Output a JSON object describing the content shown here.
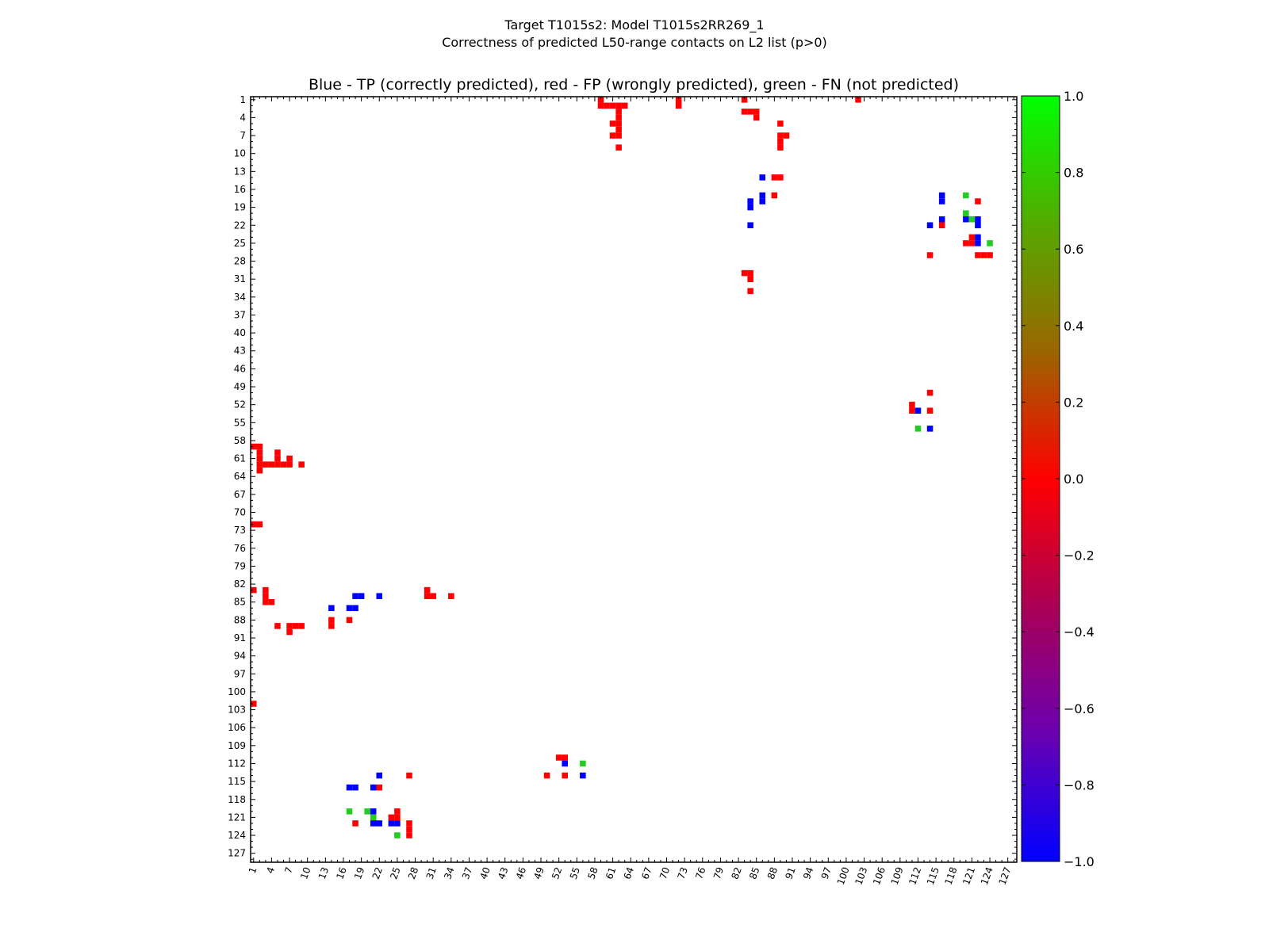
{
  "colors": {
    "tp": "#0000ff",
    "fp": "#ff0000",
    "fn": "#22cc22",
    "background": "#ffffff"
  },
  "chart_data": {
    "type": "heatmap",
    "title": [
      "Target T1015s2: Model T1015s2RR269_1",
      "Correctness of predicted L50-range contacts on L2 list (p>0)"
    ],
    "subtitle": "Blue - TP (correctly predicted), red - FP (wrongly predicted), green - FN (not predicted)",
    "xlabel": "",
    "ylabel": "",
    "axis_range": [
      1,
      129
    ],
    "ticks": [
      1,
      4,
      7,
      10,
      13,
      16,
      19,
      22,
      25,
      28,
      31,
      34,
      37,
      40,
      43,
      46,
      49,
      52,
      55,
      58,
      61,
      64,
      67,
      70,
      73,
      76,
      79,
      82,
      85,
      88,
      91,
      94,
      97,
      100,
      103,
      106,
      109,
      112,
      115,
      118,
      121,
      124,
      127
    ],
    "colorbar": {
      "range": [
        -1.0,
        1.0
      ],
      "ticks": [
        "1.0",
        "0.8",
        "0.6",
        "0.4",
        "0.2",
        "0.0",
        "−0.2",
        "−0.4",
        "−0.6",
        "−0.8",
        "−1.0"
      ],
      "stops": [
        "#0000ff",
        "#6a00b0",
        "#aa0055",
        "#ff0000",
        "#9a6600",
        "#55aa00",
        "#00ff00"
      ]
    },
    "cells": [
      {
        "x": 59,
        "y": 1,
        "v": 0
      },
      {
        "x": 59,
        "y": 2,
        "v": 0
      },
      {
        "x": 60,
        "y": 2,
        "v": 0
      },
      {
        "x": 61,
        "y": 2,
        "v": 0
      },
      {
        "x": 62,
        "y": 2,
        "v": 0
      },
      {
        "x": 63,
        "y": 2,
        "v": 0
      },
      {
        "x": 62,
        "y": 3,
        "v": 0
      },
      {
        "x": 62,
        "y": 4,
        "v": 0
      },
      {
        "x": 61,
        "y": 5,
        "v": 0
      },
      {
        "x": 62,
        "y": 5,
        "v": 0
      },
      {
        "x": 62,
        "y": 6,
        "v": 0
      },
      {
        "x": 61,
        "y": 7,
        "v": 0
      },
      {
        "x": 62,
        "y": 7,
        "v": 0
      },
      {
        "x": 62,
        "y": 9,
        "v": 0
      },
      {
        "x": 72,
        "y": 1,
        "v": 0
      },
      {
        "x": 72,
        "y": 2,
        "v": 0
      },
      {
        "x": 83,
        "y": 1,
        "v": 0
      },
      {
        "x": 102,
        "y": 1,
        "v": 0
      },
      {
        "x": 83,
        "y": 3,
        "v": 0
      },
      {
        "x": 84,
        "y": 3,
        "v": 0
      },
      {
        "x": 85,
        "y": 3,
        "v": 0
      },
      {
        "x": 85,
        "y": 4,
        "v": 0
      },
      {
        "x": 89,
        "y": 5,
        "v": 0
      },
      {
        "x": 89,
        "y": 7,
        "v": 0
      },
      {
        "x": 90,
        "y": 7,
        "v": 0
      },
      {
        "x": 89,
        "y": 8,
        "v": 0
      },
      {
        "x": 89,
        "y": 9,
        "v": 0
      },
      {
        "x": 86,
        "y": 14,
        "v": -1
      },
      {
        "x": 88,
        "y": 14,
        "v": 0
      },
      {
        "x": 89,
        "y": 14,
        "v": 0
      },
      {
        "x": 86,
        "y": 17,
        "v": -1
      },
      {
        "x": 86,
        "y": 18,
        "v": -1
      },
      {
        "x": 88,
        "y": 17,
        "v": 0
      },
      {
        "x": 84,
        "y": 18,
        "v": -1
      },
      {
        "x": 84,
        "y": 19,
        "v": -1
      },
      {
        "x": 84,
        "y": 22,
        "v": -1
      },
      {
        "x": 83,
        "y": 30,
        "v": 0
      },
      {
        "x": 84,
        "y": 30,
        "v": 0
      },
      {
        "x": 84,
        "y": 31,
        "v": 0
      },
      {
        "x": 84,
        "y": 33,
        "v": 0
      },
      {
        "x": 116,
        "y": 17,
        "v": -1
      },
      {
        "x": 116,
        "y": 18,
        "v": -1
      },
      {
        "x": 120,
        "y": 17,
        "v": 1
      },
      {
        "x": 122,
        "y": 18,
        "v": 0
      },
      {
        "x": 116,
        "y": 21,
        "v": -1
      },
      {
        "x": 120,
        "y": 20,
        "v": 1
      },
      {
        "x": 120,
        "y": 21,
        "v": -1
      },
      {
        "x": 121,
        "y": 21,
        "v": 1
      },
      {
        "x": 122,
        "y": 21,
        "v": -1
      },
      {
        "x": 122,
        "y": 22,
        "v": -1
      },
      {
        "x": 114,
        "y": 22,
        "v": -1
      },
      {
        "x": 116,
        "y": 22,
        "v": 0
      },
      {
        "x": 121,
        "y": 24,
        "v": 0
      },
      {
        "x": 120,
        "y": 25,
        "v": 0
      },
      {
        "x": 121,
        "y": 25,
        "v": 0
      },
      {
        "x": 122,
        "y": 24,
        "v": -1
      },
      {
        "x": 122,
        "y": 25,
        "v": -1
      },
      {
        "x": 124,
        "y": 25,
        "v": 1
      },
      {
        "x": 114,
        "y": 27,
        "v": 0
      },
      {
        "x": 122,
        "y": 27,
        "v": 0
      },
      {
        "x": 123,
        "y": 27,
        "v": 0
      },
      {
        "x": 124,
        "y": 27,
        "v": 0
      },
      {
        "x": 114,
        "y": 50,
        "v": 0
      },
      {
        "x": 111,
        "y": 52,
        "v": 0
      },
      {
        "x": 111,
        "y": 53,
        "v": 0
      },
      {
        "x": 112,
        "y": 53,
        "v": -1
      },
      {
        "x": 114,
        "y": 53,
        "v": 0
      },
      {
        "x": 112,
        "y": 56,
        "v": 1
      },
      {
        "x": 114,
        "y": 56,
        "v": -1
      },
      {
        "x": 1,
        "y": 59,
        "v": 0
      },
      {
        "x": 2,
        "y": 59,
        "v": 0
      },
      {
        "x": 2,
        "y": 60,
        "v": 0
      },
      {
        "x": 5,
        "y": 60,
        "v": 0
      },
      {
        "x": 2,
        "y": 61,
        "v": 0
      },
      {
        "x": 5,
        "y": 61,
        "v": 0
      },
      {
        "x": 7,
        "y": 61,
        "v": 0
      },
      {
        "x": 2,
        "y": 62,
        "v": 0
      },
      {
        "x": 3,
        "y": 62,
        "v": 0
      },
      {
        "x": 4,
        "y": 62,
        "v": 0
      },
      {
        "x": 5,
        "y": 62,
        "v": 0
      },
      {
        "x": 6,
        "y": 62,
        "v": 0
      },
      {
        "x": 7,
        "y": 62,
        "v": 0
      },
      {
        "x": 9,
        "y": 62,
        "v": 0
      },
      {
        "x": 2,
        "y": 63,
        "v": 0
      },
      {
        "x": 1,
        "y": 72,
        "v": 0
      },
      {
        "x": 2,
        "y": 72,
        "v": 0
      },
      {
        "x": 1,
        "y": 83,
        "v": 0
      },
      {
        "x": 3,
        "y": 83,
        "v": 0
      },
      {
        "x": 3,
        "y": 84,
        "v": 0
      },
      {
        "x": 3,
        "y": 85,
        "v": 0
      },
      {
        "x": 4,
        "y": 85,
        "v": 0
      },
      {
        "x": 18,
        "y": 84,
        "v": -1
      },
      {
        "x": 19,
        "y": 84,
        "v": -1
      },
      {
        "x": 22,
        "y": 84,
        "v": -1
      },
      {
        "x": 30,
        "y": 83,
        "v": 0
      },
      {
        "x": 30,
        "y": 84,
        "v": 0
      },
      {
        "x": 31,
        "y": 84,
        "v": 0
      },
      {
        "x": 34,
        "y": 84,
        "v": 0
      },
      {
        "x": 14,
        "y": 86,
        "v": -1
      },
      {
        "x": 17,
        "y": 86,
        "v": -1
      },
      {
        "x": 18,
        "y": 86,
        "v": -1
      },
      {
        "x": 14,
        "y": 88,
        "v": 0
      },
      {
        "x": 14,
        "y": 89,
        "v": 0
      },
      {
        "x": 17,
        "y": 88,
        "v": 0
      },
      {
        "x": 5,
        "y": 89,
        "v": 0
      },
      {
        "x": 7,
        "y": 89,
        "v": 0
      },
      {
        "x": 8,
        "y": 89,
        "v": 0
      },
      {
        "x": 9,
        "y": 89,
        "v": 0
      },
      {
        "x": 7,
        "y": 90,
        "v": 0
      },
      {
        "x": 1,
        "y": 102,
        "v": 0
      },
      {
        "x": 52,
        "y": 111,
        "v": 0
      },
      {
        "x": 53,
        "y": 111,
        "v": 0
      },
      {
        "x": 53,
        "y": 112,
        "v": -1
      },
      {
        "x": 56,
        "y": 112,
        "v": 1
      },
      {
        "x": 22,
        "y": 114,
        "v": -1
      },
      {
        "x": 27,
        "y": 114,
        "v": 0
      },
      {
        "x": 50,
        "y": 114,
        "v": 0
      },
      {
        "x": 53,
        "y": 114,
        "v": 0
      },
      {
        "x": 56,
        "y": 114,
        "v": -1
      },
      {
        "x": 17,
        "y": 116,
        "v": -1
      },
      {
        "x": 18,
        "y": 116,
        "v": -1
      },
      {
        "x": 21,
        "y": 116,
        "v": -1
      },
      {
        "x": 22,
        "y": 116,
        "v": 0
      },
      {
        "x": 17,
        "y": 120,
        "v": 1
      },
      {
        "x": 20,
        "y": 120,
        "v": 1
      },
      {
        "x": 21,
        "y": 120,
        "v": -1
      },
      {
        "x": 21,
        "y": 121,
        "v": 1
      },
      {
        "x": 24,
        "y": 121,
        "v": 0
      },
      {
        "x": 25,
        "y": 120,
        "v": 0
      },
      {
        "x": 25,
        "y": 121,
        "v": 0
      },
      {
        "x": 18,
        "y": 122,
        "v": 0
      },
      {
        "x": 21,
        "y": 122,
        "v": -1
      },
      {
        "x": 22,
        "y": 122,
        "v": -1
      },
      {
        "x": 24,
        "y": 122,
        "v": -1
      },
      {
        "x": 25,
        "y": 122,
        "v": -1
      },
      {
        "x": 27,
        "y": 122,
        "v": 0
      },
      {
        "x": 27,
        "y": 123,
        "v": 0
      },
      {
        "x": 27,
        "y": 124,
        "v": 0
      },
      {
        "x": 25,
        "y": 124,
        "v": 1
      }
    ]
  }
}
